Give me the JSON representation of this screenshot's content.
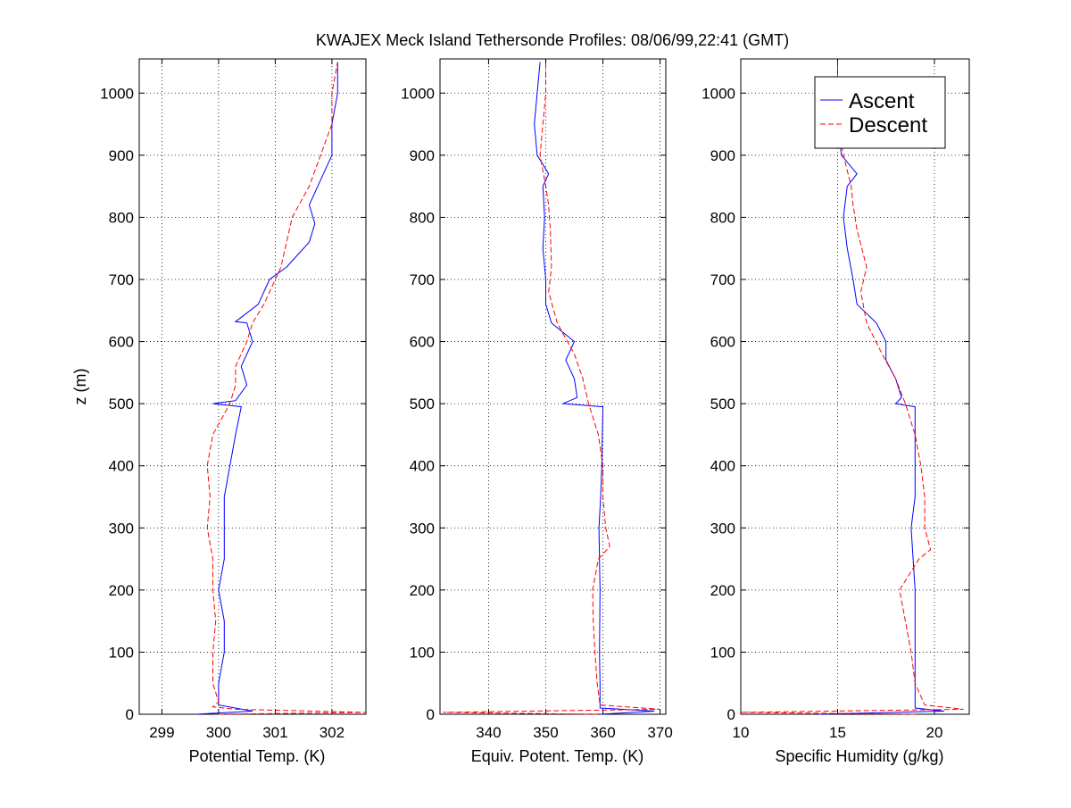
{
  "figure": {
    "title": "KWAJEX Meck Island Tethersonde Profiles: 08/06/99,22:41 (GMT)",
    "ylabel": "z (m)"
  },
  "legend": {
    "placement": "top-right of third panel",
    "entries": [
      {
        "label": "Ascent",
        "color": "#0000ff",
        "dash": "solid"
      },
      {
        "label": "Descent",
        "color": "#ff0000",
        "dash": "dashed"
      }
    ]
  },
  "chart_data": [
    {
      "type": "line",
      "xlabel": "Potential Temp. (K)",
      "ylabel": "z (m)",
      "xlim": [
        298.6,
        302.6
      ],
      "ylim": [
        0,
        1055
      ],
      "xticks": [
        "299",
        "300",
        "301",
        "302"
      ],
      "yticks": [
        "0",
        "100",
        "200",
        "300",
        "400",
        "500",
        "600",
        "700",
        "800",
        "900",
        "1000"
      ],
      "grid": true,
      "series": [
        {
          "name": "Ascent",
          "color": "#0000ff",
          "z": [
            0,
            5,
            15,
            50,
            100,
            150,
            200,
            250,
            300,
            350,
            400,
            450,
            495,
            500,
            505,
            530,
            560,
            600,
            630,
            632,
            660,
            700,
            720,
            760,
            790,
            820,
            860,
            900,
            950,
            1000,
            1050
          ],
          "values": [
            299.6,
            300.6,
            300.0,
            300.0,
            300.1,
            300.1,
            300.0,
            300.1,
            300.1,
            300.1,
            300.2,
            300.3,
            300.4,
            299.9,
            300.3,
            300.5,
            300.4,
            300.6,
            300.5,
            300.3,
            300.7,
            300.9,
            301.2,
            301.6,
            301.7,
            301.6,
            301.8,
            302.0,
            302.0,
            302.1,
            302.1
          ]
        },
        {
          "name": "Descent",
          "color": "#ff0000",
          "z": [
            0,
            3,
            8,
            12,
            20,
            50,
            100,
            150,
            200,
            250,
            300,
            350,
            400,
            450,
            500,
            530,
            560,
            600,
            630,
            660,
            700,
            720,
            760,
            800,
            850,
            900,
            950,
            1000,
            1050
          ],
          "values": [
            300.0,
            302.6,
            300.3,
            299.9,
            300.0,
            299.9,
            299.9,
            299.95,
            299.9,
            299.9,
            299.8,
            299.85,
            299.8,
            299.9,
            300.2,
            300.3,
            300.3,
            300.5,
            300.6,
            300.8,
            301.0,
            301.1,
            301.2,
            301.3,
            301.6,
            301.8,
            302.0,
            302.0,
            302.1
          ]
        }
      ]
    },
    {
      "type": "line",
      "xlabel": "Equiv. Potent. Temp. (K)",
      "ylabel": "",
      "xlim": [
        331.5,
        371
      ],
      "ylim": [
        0,
        1055
      ],
      "xticks": [
        "340",
        "350",
        "360",
        "370"
      ],
      "yticks": [
        "0",
        "100",
        "200",
        "300",
        "400",
        "500",
        "600",
        "700",
        "800",
        "900",
        "1000"
      ],
      "grid": true,
      "series": [
        {
          "name": "Ascent",
          "color": "#0000ff",
          "z": [
            0,
            5,
            10,
            50,
            100,
            200,
            300,
            350,
            400,
            450,
            495,
            500,
            510,
            540,
            570,
            600,
            630,
            660,
            700,
            750,
            800,
            850,
            870,
            900,
            950,
            1000,
            1050
          ],
          "values": [
            359.5,
            369,
            359.5,
            359.5,
            359.4,
            359.5,
            359.3,
            359.6,
            359.8,
            359.9,
            360.0,
            353.0,
            355.5,
            355.0,
            353.5,
            355.0,
            351.0,
            350.0,
            350.0,
            349.5,
            349.8,
            349.5,
            350.5,
            348.5,
            348.0,
            348.5,
            349.0
          ]
        },
        {
          "name": "Descent",
          "color": "#ff0000",
          "z": [
            0,
            3,
            8,
            15,
            50,
            100,
            150,
            200,
            250,
            270,
            300,
            350,
            400,
            450,
            500,
            540,
            580,
            630,
            680,
            720,
            780,
            820,
            850,
            900,
            950,
            1000,
            1050
          ],
          "values": [
            359.0,
            332.0,
            370.0,
            359.5,
            359.0,
            358.6,
            358.3,
            358.2,
            359.2,
            361.2,
            360.5,
            360.0,
            360.0,
            359.2,
            357.5,
            356.5,
            355.0,
            352.0,
            350.5,
            351.0,
            350.8,
            350.5,
            350.0,
            349.0,
            349.5,
            350.0,
            350.0
          ]
        }
      ]
    },
    {
      "type": "line",
      "xlabel": "Specific Humidity (g/kg)",
      "ylabel": "",
      "xlim": [
        10,
        21.8
      ],
      "ylim": [
        0,
        1055
      ],
      "xticks": [
        "10",
        "15",
        "20"
      ],
      "yticks": [
        "0",
        "100",
        "200",
        "300",
        "400",
        "500",
        "600",
        "700",
        "800",
        "900",
        "1000"
      ],
      "grid": true,
      "series": [
        {
          "name": "Ascent",
          "color": "#0000ff",
          "z": [
            0,
            5,
            10,
            50,
            100,
            200,
            300,
            350,
            400,
            450,
            495,
            500,
            510,
            540,
            570,
            600,
            630,
            660,
            700,
            750,
            800,
            850,
            870,
            900,
            950,
            1000,
            1050
          ],
          "values": [
            14.0,
            20.5,
            19.0,
            19.0,
            19.0,
            19.0,
            18.8,
            19.0,
            19.0,
            19.0,
            19.0,
            18.0,
            18.3,
            18.0,
            17.5,
            17.5,
            17.0,
            16.0,
            15.8,
            15.5,
            15.3,
            15.5,
            16.0,
            15.2,
            15.0,
            15.0,
            15.0
          ]
        },
        {
          "name": "Descent",
          "color": "#ff0000",
          "z": [
            0,
            3,
            8,
            15,
            50,
            100,
            150,
            200,
            250,
            265,
            300,
            350,
            400,
            450,
            500,
            540,
            580,
            630,
            680,
            720,
            780,
            820,
            850,
            900,
            950,
            1000,
            1050
          ],
          "values": [
            19.0,
            10.0,
            21.5,
            19.5,
            19.0,
            18.8,
            18.5,
            18.2,
            19.2,
            19.8,
            19.5,
            19.5,
            19.3,
            19.0,
            18.5,
            18.0,
            17.3,
            16.5,
            16.2,
            16.5,
            16.0,
            15.8,
            15.7,
            15.3,
            15.0,
            15.0,
            15.0
          ]
        }
      ]
    }
  ]
}
